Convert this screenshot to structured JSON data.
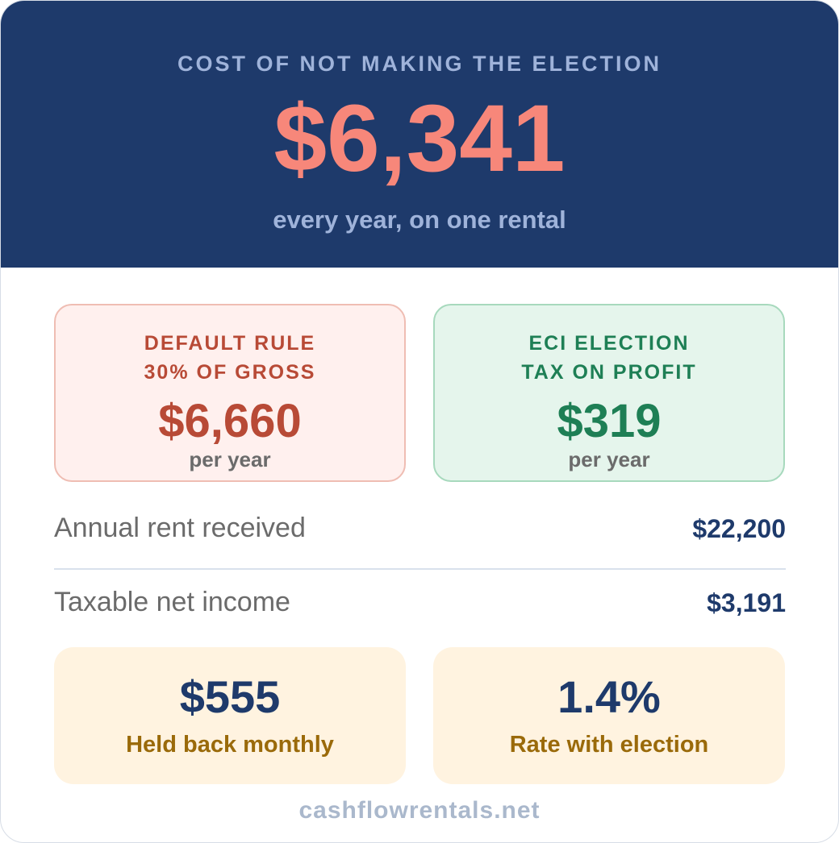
{
  "hero": {
    "title": "COST OF NOT MAKING THE ELECTION",
    "amount": "$6,341",
    "subtitle": "every year, on one rental"
  },
  "comparison": {
    "default": {
      "line1": "DEFAULT RULE",
      "line2": "30% OF GROSS",
      "amount": "$6,660",
      "period": "per year"
    },
    "eci": {
      "line1": "ECI ELECTION",
      "line2": "TAX ON PROFIT",
      "amount": "$319",
      "period": "per year"
    }
  },
  "rows": [
    {
      "label": "Annual rent received",
      "value": "$22,200"
    },
    {
      "label": "Taxable net income",
      "value": "$3,191"
    }
  ],
  "stats": [
    {
      "value": "$555",
      "caption": "Held back monthly"
    },
    {
      "value": "1.4%",
      "caption": "Rate with election"
    }
  ],
  "footer": "cashflowrentals.net",
  "colors": {
    "navy": "#1e3a6b",
    "coral": "#f7877a",
    "default_red": "#b84a36",
    "eci_green": "#1e7f55",
    "gold": "#9a6a0a"
  }
}
